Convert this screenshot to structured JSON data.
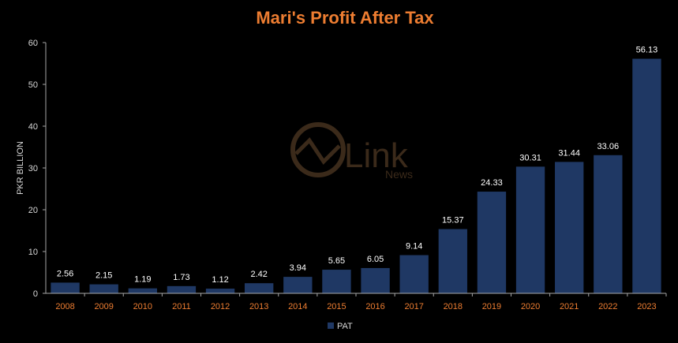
{
  "chart_data": {
    "type": "bar",
    "title": "Mari's Profit After Tax",
    "xlabel": "",
    "ylabel": "PKR BILLION",
    "categories": [
      "2008",
      "2009",
      "2010",
      "2011",
      "2012",
      "2013",
      "2014",
      "2015",
      "2016",
      "2017",
      "2018",
      "2019",
      "2020",
      "2021",
      "2022",
      "2023"
    ],
    "series": [
      {
        "name": "PAT",
        "values": [
          2.56,
          2.15,
          1.19,
          1.73,
          1.12,
          2.42,
          3.94,
          5.65,
          6.05,
          9.14,
          15.37,
          24.33,
          30.31,
          31.44,
          33.06,
          56.13
        ],
        "labels": [
          "2.56",
          "2.15",
          "1.19",
          "1.73",
          "1.12",
          "2.42",
          "3.94",
          "5.65",
          "6.05",
          "9.14",
          "15.37",
          "24.33",
          "30.31",
          "31.44",
          "33.06",
          "56.13"
        ]
      }
    ],
    "ylim": [
      0,
      60
    ],
    "yticks": [
      0,
      10,
      20,
      30,
      40,
      50,
      60
    ],
    "grid": false,
    "legend": "bottom-center",
    "data_labels": true
  },
  "colors": {
    "background": "#000000",
    "bar": "#1f3864",
    "title": "#ed7d31",
    "tick_text": "#ed7d31",
    "ytick_text": "#d9d9d9",
    "label_text": "#ffffff",
    "axis": "#a6a6a6",
    "watermark": "#3b2a1a"
  },
  "watermark": {
    "text": "Link",
    "subtext": "News"
  }
}
